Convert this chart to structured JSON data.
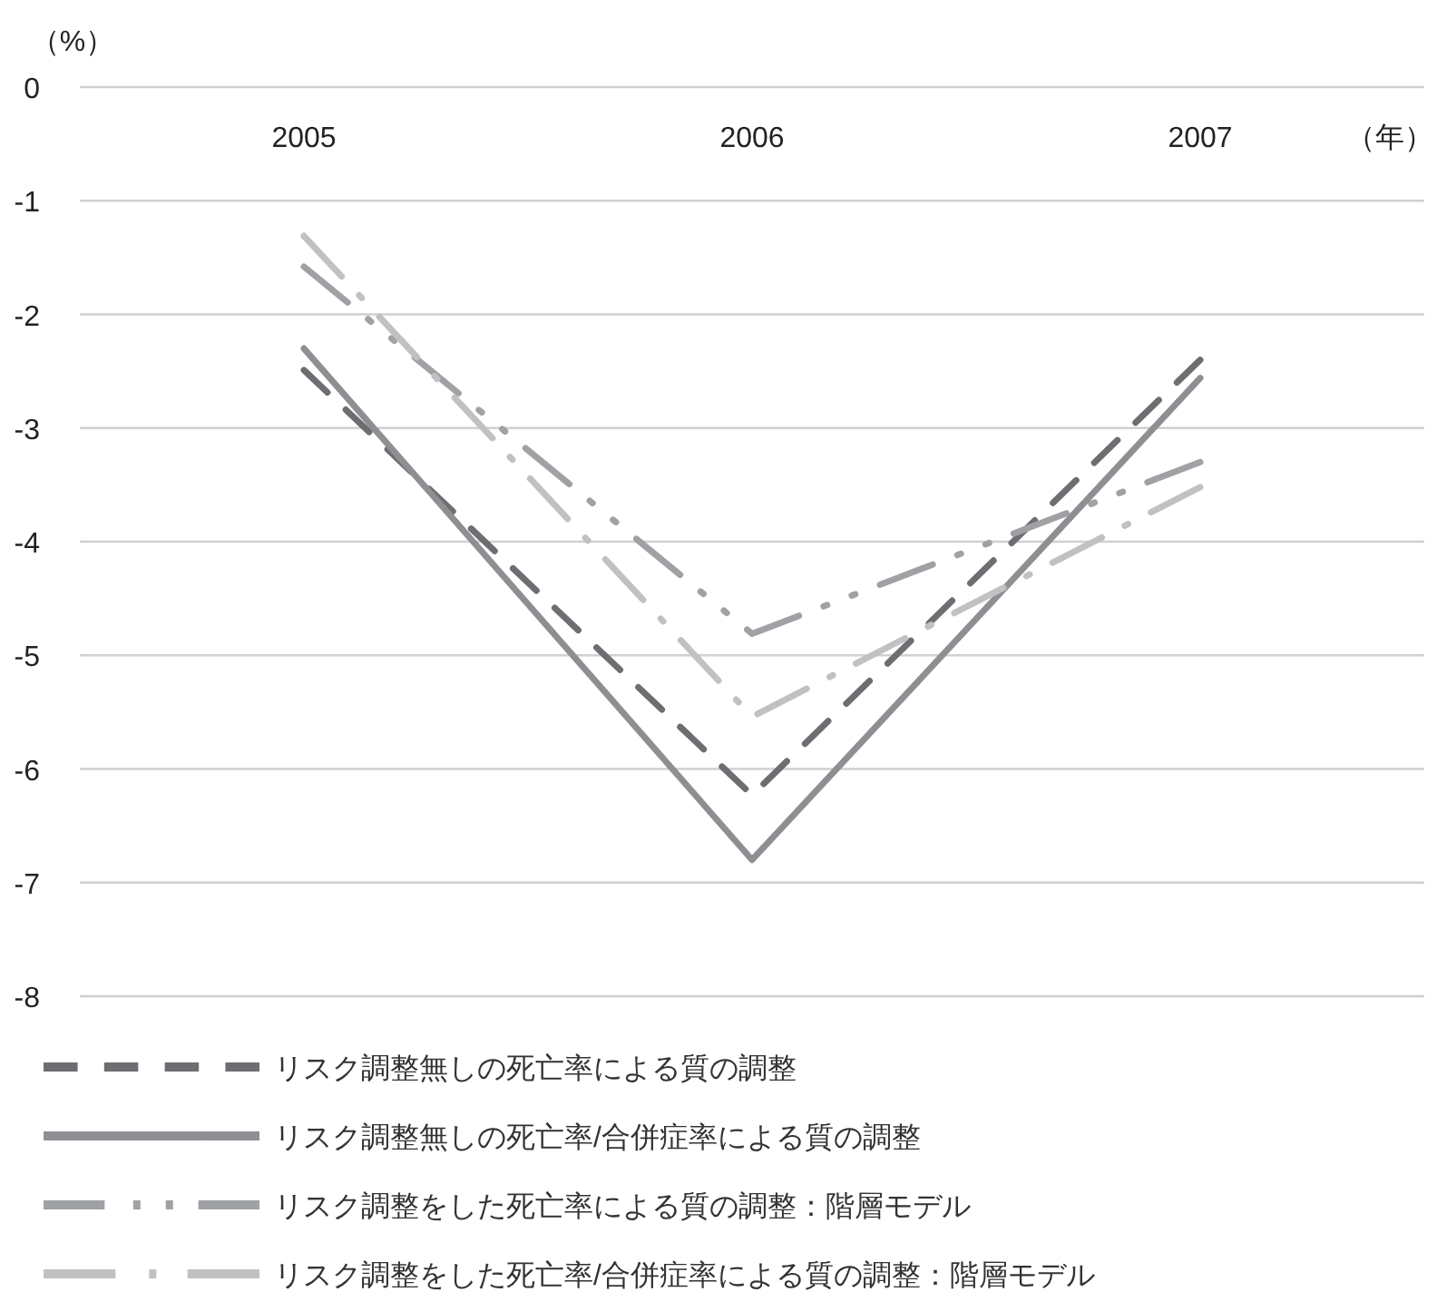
{
  "chart_data": {
    "type": "line",
    "ylabel": "（%）",
    "xlabel": "（年）",
    "categories": [
      "2005",
      "2006",
      "2007"
    ],
    "series": [
      {
        "name": "リスク調整無しの死亡率による質の調整",
        "color": "#6d6e71",
        "line_style": "dashed",
        "values": [
          -2.49,
          -6.23,
          -2.4
        ]
      },
      {
        "name": "リスク調整無しの死亡率/合併症率による質の調整",
        "color": "#8e8f92",
        "line_style": "solid",
        "values": [
          -2.3,
          -6.8,
          -2.56
        ]
      },
      {
        "name": "リスク調整をした死亡率による質の調整：階層モデル",
        "color": "#a0a1a4",
        "line_style": "dashdotdot",
        "values": [
          -1.58,
          -4.81,
          -3.3
        ]
      },
      {
        "name": "リスク調整をした死亡率/合併症率による質の調整：階層モデル",
        "color": "#c0c1c3",
        "line_style": "dashdot",
        "values": [
          -1.31,
          -5.54,
          -3.52
        ]
      }
    ],
    "ylim": [
      -8,
      0
    ],
    "yticks": [
      -8,
      -7,
      -6,
      -5,
      -4,
      -3,
      -2,
      -1,
      0
    ],
    "grid": "y",
    "legend": "bottom",
    "marker": "none"
  }
}
